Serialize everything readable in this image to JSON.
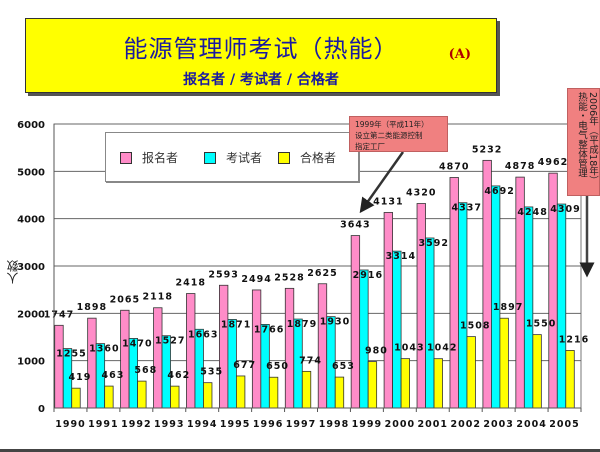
{
  "title": {
    "main": "能源管理师考试（热能）",
    "subtitle": "报名者 / 考试者 / 合格者",
    "tag": "(A)"
  },
  "annotations": {
    "left_note": "1999年（平成11年）\n设立第二类能源控制\n指定工厂",
    "right_note": "2006年（平成18年）热能・电气整体管理"
  },
  "colors": {
    "applicants": "#ff8cc8",
    "examinees": "#00ffff",
    "passers": "#ffff00",
    "title_bg": "#ffff00",
    "note_bg": "#f08080"
  },
  "chart_data": {
    "type": "bar",
    "title": "能源管理师考试（热能）",
    "subtitle": "报名者 / 考试者 / 合格者",
    "xlabel": "",
    "ylabel": "人数",
    "ylim": [
      0,
      6000
    ],
    "yticks": [
      0,
      1000,
      2000,
      3000,
      4000,
      5000,
      6000
    ],
    "grid": true,
    "legend_position": "top-left",
    "categories": [
      "1990",
      "1991",
      "1992",
      "1993",
      "1994",
      "1995",
      "1996",
      "1997",
      "1998",
      "1999",
      "2000",
      "2001",
      "2002",
      "2003",
      "2004",
      "2005"
    ],
    "series": [
      {
        "name": "报名者",
        "color": "#ff8cc8",
        "values": [
          1747,
          1898,
          2065,
          2118,
          2418,
          2593,
          2494,
          2528,
          2625,
          3643,
          4131,
          4320,
          4870,
          5232,
          4878,
          4962
        ]
      },
      {
        "name": "考试者",
        "color": "#00ffff",
        "values": [
          1255,
          1360,
          1470,
          1527,
          1663,
          1871,
          1766,
          1879,
          1930,
          2916,
          3314,
          3592,
          4337,
          4692,
          4248,
          4309
        ]
      },
      {
        "name": "合格者",
        "color": "#ffff00",
        "values": [
          419,
          463,
          568,
          462,
          535,
          677,
          650,
          774,
          653,
          980,
          1043,
          1042,
          1508,
          1897,
          1550,
          1216
        ]
      }
    ]
  }
}
